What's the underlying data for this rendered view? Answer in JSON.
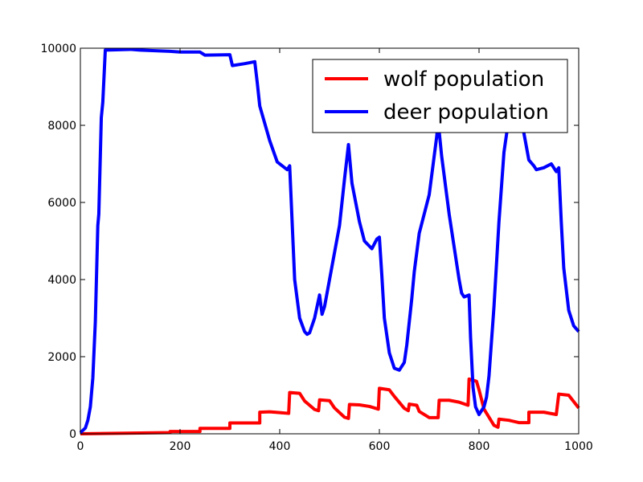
{
  "chart_data": {
    "type": "line",
    "title": "",
    "xlabel": "",
    "ylabel": "",
    "xlim": [
      0,
      1000
    ],
    "ylim": [
      0,
      10000
    ],
    "xticks": [
      0,
      200,
      400,
      600,
      800,
      1000
    ],
    "yticks": [
      0,
      2000,
      4000,
      6000,
      8000,
      10000
    ],
    "xtick_labels": [
      "0",
      "200",
      "400",
      "600",
      "800",
      "1000"
    ],
    "ytick_labels": [
      "0",
      "2000",
      "4000",
      "6000",
      "8000",
      "10000"
    ],
    "grid": false,
    "legend_position": "upper right",
    "series": [
      {
        "name": "wolf population",
        "color": "#ff0000",
        "x": [
          0,
          60,
          120,
          180,
          180,
          240,
          240,
          300,
          300,
          360,
          360,
          380,
          400,
          418,
          420,
          440,
          450,
          470,
          478,
          480,
          500,
          510,
          530,
          538,
          540,
          560,
          580,
          598,
          600,
          620,
          630,
          650,
          658,
          660,
          675,
          680,
          700,
          718,
          720,
          740,
          760,
          778,
          780,
          795,
          800,
          810,
          830,
          838,
          840,
          860,
          880,
          900,
          900,
          930,
          955,
          960,
          980,
          1000
        ],
        "y": [
          0,
          10,
          20,
          30,
          60,
          60,
          140,
          140,
          280,
          280,
          560,
          570,
          550,
          530,
          1070,
          1050,
          850,
          630,
          600,
          880,
          860,
          670,
          430,
          400,
          760,
          750,
          710,
          640,
          1180,
          1140,
          970,
          660,
          600,
          770,
          740,
          580,
          420,
          420,
          870,
          870,
          820,
          740,
          1420,
          1360,
          1140,
          640,
          220,
          170,
          380,
          350,
          290,
          290,
          560,
          560,
          500,
          1030,
          1000,
          670
        ]
      },
      {
        "name": "deer population",
        "color": "#0000ff",
        "x": [
          0,
          10,
          15,
          20,
          25,
          30,
          35,
          37,
          42,
          45,
          50,
          100,
          120,
          180,
          200,
          240,
          250,
          300,
          305,
          330,
          350,
          355,
          360,
          380,
          395,
          410,
          415,
          420,
          430,
          440,
          450,
          455,
          460,
          470,
          480,
          485,
          490,
          500,
          510,
          520,
          530,
          538,
          545,
          560,
          570,
          585,
          595,
          600,
          605,
          610,
          620,
          630,
          640,
          650,
          655,
          665,
          670,
          680,
          700,
          715,
          718,
          725,
          740,
          760,
          765,
          770,
          780,
          783,
          788,
          793,
          800,
          810,
          815,
          820,
          830,
          840,
          850,
          860,
          870,
          880,
          885,
          890,
          900,
          910,
          915,
          930,
          945,
          955,
          960,
          965,
          970,
          980,
          990,
          1000
        ],
        "y": [
          30,
          150,
          350,
          700,
          1450,
          2900,
          5400,
          5700,
          8200,
          8600,
          9950,
          9970,
          9950,
          9920,
          9900,
          9900,
          9820,
          9830,
          9550,
          9600,
          9650,
          9100,
          8500,
          7600,
          7050,
          6900,
          6850,
          6950,
          4000,
          3000,
          2650,
          2580,
          2620,
          3000,
          3600,
          3100,
          3300,
          4000,
          4700,
          5400,
          6600,
          7500,
          6500,
          5500,
          5000,
          4800,
          5050,
          5100,
          4100,
          3000,
          2100,
          1700,
          1650,
          1850,
          2300,
          3500,
          4200,
          5200,
          6200,
          7700,
          8100,
          7200,
          5700,
          4000,
          3650,
          3550,
          3600,
          2500,
          1200,
          700,
          500,
          700,
          950,
          1500,
          3300,
          5500,
          7300,
          8200,
          8300,
          8600,
          8400,
          7800,
          7100,
          6950,
          6850,
          6900,
          7000,
          6800,
          6900,
          5500,
          4300,
          3200,
          2800,
          2650
        ]
      }
    ]
  }
}
